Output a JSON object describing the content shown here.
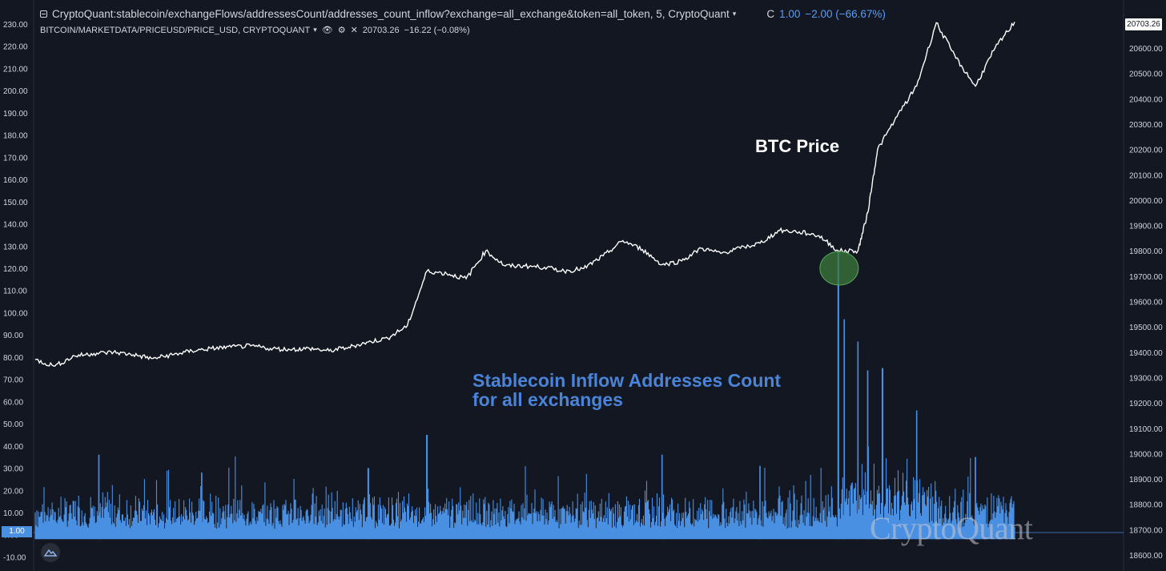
{
  "legend": {
    "series_title": "CryptoQuant:stablecoin/exchangeFlows/addressesCount/addresses_count_inflow?exchange=all_exchange&token=all_token, 5, CryptoQuant",
    "series_close_label": "C",
    "series_close_value": "1.00",
    "series_change": "−2.00 (−66.67%)",
    "price_title": "BITCOIN/MARKETDATA/PRICEUSD/PRICE_USD, CRYPTOQUANT",
    "price_value": "20703.26",
    "price_change": "−16.22 (−0.08%)"
  },
  "annotations": {
    "btc_price": "BTC Price",
    "stablecoin_line1": "Stablecoin Inflow Addresses Count",
    "stablecoin_line2": "for all exchanges"
  },
  "watermark": "CryptoQuant",
  "price_tag": "20703.26",
  "left_tag": "1.00",
  "icons": {
    "logo": "cryptoquant-logo-icon",
    "visibility": "eye-icon",
    "settings": "gear-icon",
    "remove": "close-icon",
    "series": "series-icon"
  },
  "colors": {
    "background": "#131722",
    "price_line": "#ffffff",
    "inflow_bars": "#4a90e2",
    "highlight": "#3b7a3b"
  },
  "chart_data": {
    "type": "line",
    "left_axis": {
      "min": -10,
      "max": 230,
      "ticks": [
        "-10.00",
        "0.00",
        "1.00",
        "10.00",
        "20.00",
        "30.00",
        "40.00",
        "50.00",
        "60.00",
        "70.00",
        "80.00",
        "90.00",
        "100.00",
        "110.00",
        "120.00",
        "130.00",
        "140.00",
        "150.00",
        "160.00",
        "170.00",
        "180.00",
        "190.00",
        "200.00",
        "210.00",
        "220.00",
        "230.00"
      ]
    },
    "right_axis": {
      "min": 18600,
      "max": 20700,
      "ticks": [
        "18600.00",
        "18700.00",
        "18800.00",
        "18900.00",
        "19000.00",
        "19100.00",
        "19200.00",
        "19300.00",
        "19400.00",
        "19500.00",
        "19600.00",
        "19700.00",
        "19800.00",
        "19900.00",
        "20000.00",
        "20100.00",
        "20200.00",
        "20300.00",
        "20400.00",
        "20500.00",
        "20600.00"
      ]
    },
    "price_series": {
      "x": [
        0,
        2,
        4,
        6,
        8,
        10,
        12,
        14,
        16,
        18,
        20,
        22,
        24,
        26,
        28,
        30,
        32,
        34,
        36,
        38,
        40,
        42,
        44,
        46,
        48,
        50,
        52,
        54,
        56,
        58,
        60,
        62,
        64,
        66,
        68,
        70,
        72,
        74,
        76,
        78,
        80,
        82,
        84,
        85,
        86,
        88,
        90,
        92,
        94,
        96,
        98,
        100
      ],
      "values": [
        19370,
        19345,
        19385,
        19395,
        19400,
        19390,
        19375,
        19390,
        19405,
        19415,
        19420,
        19425,
        19415,
        19410,
        19415,
        19405,
        19420,
        19440,
        19455,
        19505,
        19720,
        19710,
        19690,
        19800,
        19740,
        19740,
        19735,
        19720,
        19730,
        19780,
        19840,
        19805,
        19745,
        19760,
        19810,
        19790,
        19810,
        19830,
        19880,
        19875,
        19860,
        19800,
        19800,
        19950,
        20200,
        20330,
        20450,
        20700,
        20560,
        20450,
        20600,
        20703
      ]
    },
    "inflow_series": {
      "base_values": [
        12,
        10,
        14,
        9,
        11,
        13,
        8,
        12,
        10,
        15,
        11,
        9,
        13,
        12,
        10,
        14,
        9,
        11,
        12,
        10,
        13,
        11,
        9,
        12,
        14,
        10,
        11,
        13,
        9,
        12
      ],
      "spikes": [
        {
          "x": 6.5,
          "value": 36
        },
        {
          "x": 17,
          "value": 28
        },
        {
          "x": 34,
          "value": 30
        },
        {
          "x": 40,
          "value": 45
        },
        {
          "x": 64,
          "value": 36
        },
        {
          "x": 74,
          "value": 31
        },
        {
          "x": 82,
          "value": 128
        },
        {
          "x": 82.6,
          "value": 97
        },
        {
          "x": 84,
          "value": 87
        },
        {
          "x": 85,
          "value": 74
        },
        {
          "x": 86.5,
          "value": 75
        },
        {
          "x": 90,
          "value": 56
        },
        {
          "x": 96,
          "value": 35
        }
      ],
      "last_value": 1
    },
    "highlight_circle": {
      "x": 82,
      "value_left": 120
    }
  }
}
